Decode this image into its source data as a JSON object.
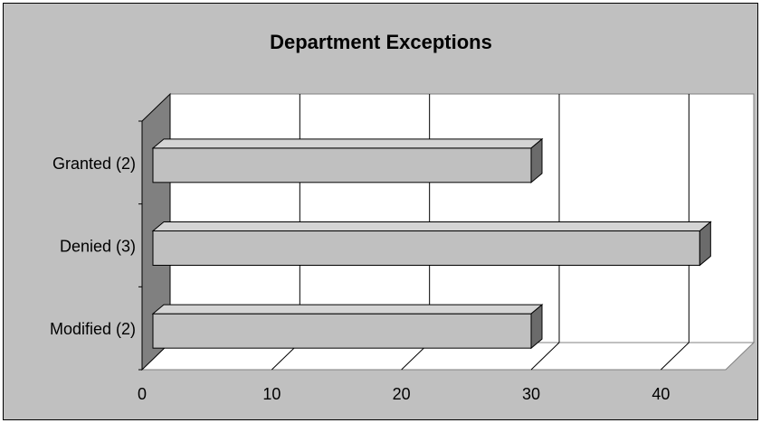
{
  "chart_data": {
    "type": "bar",
    "orientation": "horizontal",
    "style": "3d",
    "title": "Department Exceptions",
    "categories": [
      "Granted (2)",
      "Denied (3)",
      "Modified (2)"
    ],
    "values": [
      30,
      43,
      30
    ],
    "xlim": [
      0,
      45
    ],
    "x_ticks": [
      0,
      10,
      20,
      30,
      40
    ],
    "grid": true,
    "legend": "none",
    "colors": {
      "chart_area": "#c0c0c0",
      "plot_back": "#ffffff",
      "side_wall": "#808080",
      "bar_front": "#c0c0c0",
      "bar_top": "#d4d4d4",
      "bar_side": "#6b6b6b"
    }
  }
}
